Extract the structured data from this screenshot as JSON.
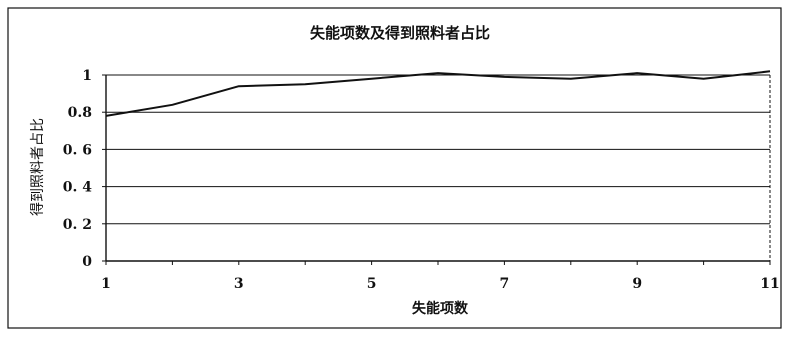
{
  "chart_data": {
    "type": "line",
    "title": "失能项数及得到照料者占比",
    "xlabel": "失能项数",
    "ylabel": "得到照料者占比",
    "x": [
      1,
      2,
      3,
      4,
      5,
      6,
      7,
      8,
      9,
      10,
      11
    ],
    "series": [
      {
        "values": [
          0.78,
          0.84,
          0.94,
          0.95,
          0.98,
          1.01,
          0.99,
          0.98,
          1.01,
          0.98,
          1.02
        ]
      }
    ],
    "x_tick_labels": [
      "1",
      "3",
      "5",
      "7",
      "9",
      "11"
    ],
    "y_tick_labels": [
      "0",
      "0. 2",
      "0. 4",
      "0. 6",
      "0.8",
      "1"
    ],
    "xlim": [
      1,
      11
    ],
    "ylim": [
      0,
      1
    ],
    "grid": true,
    "legend": "none",
    "colors": {
      "line": "#111111",
      "grid": "#111111",
      "frame": "#111111"
    }
  }
}
